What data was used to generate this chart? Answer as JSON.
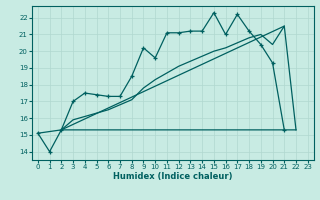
{
  "xlabel": "Humidex (Indice chaleur)",
  "bg_color": "#c8ebe3",
  "line_color": "#006060",
  "grid_color": "#b0d8d0",
  "xlim": [
    -0.5,
    23.5
  ],
  "ylim": [
    13.5,
    22.7
  ],
  "xticks": [
    0,
    1,
    2,
    3,
    4,
    5,
    6,
    7,
    8,
    9,
    10,
    11,
    12,
    13,
    14,
    15,
    16,
    17,
    18,
    19,
    20,
    21,
    22,
    23
  ],
  "yticks": [
    14,
    15,
    16,
    17,
    18,
    19,
    20,
    21,
    22
  ],
  "line1_x": [
    0,
    1,
    2,
    3,
    4,
    5,
    6,
    7,
    8,
    9,
    10,
    11,
    12,
    13,
    14,
    15,
    16,
    17,
    18,
    19,
    20,
    21
  ],
  "line1_y": [
    15.1,
    14.0,
    15.3,
    17.0,
    17.5,
    17.4,
    17.3,
    17.3,
    18.5,
    20.2,
    19.6,
    21.1,
    21.1,
    21.2,
    21.2,
    22.3,
    21.0,
    22.2,
    21.2,
    20.4,
    19.3,
    15.3
  ],
  "line2_x": [
    2,
    3,
    4,
    5,
    6,
    7,
    8,
    9,
    10,
    11,
    12,
    13,
    14,
    15,
    16,
    17,
    18,
    19,
    20,
    21,
    22
  ],
  "line2_y": [
    15.3,
    15.9,
    16.1,
    16.3,
    16.5,
    16.8,
    17.1,
    17.8,
    18.3,
    18.7,
    19.1,
    19.4,
    19.7,
    20.0,
    20.2,
    20.5,
    20.8,
    21.0,
    20.4,
    21.5,
    15.3
  ],
  "line3_x": [
    0,
    2,
    18,
    22
  ],
  "line3_y": [
    15.1,
    15.3,
    15.3,
    15.3
  ],
  "line4_x": [
    2,
    21
  ],
  "line4_y": [
    15.3,
    21.5
  ]
}
